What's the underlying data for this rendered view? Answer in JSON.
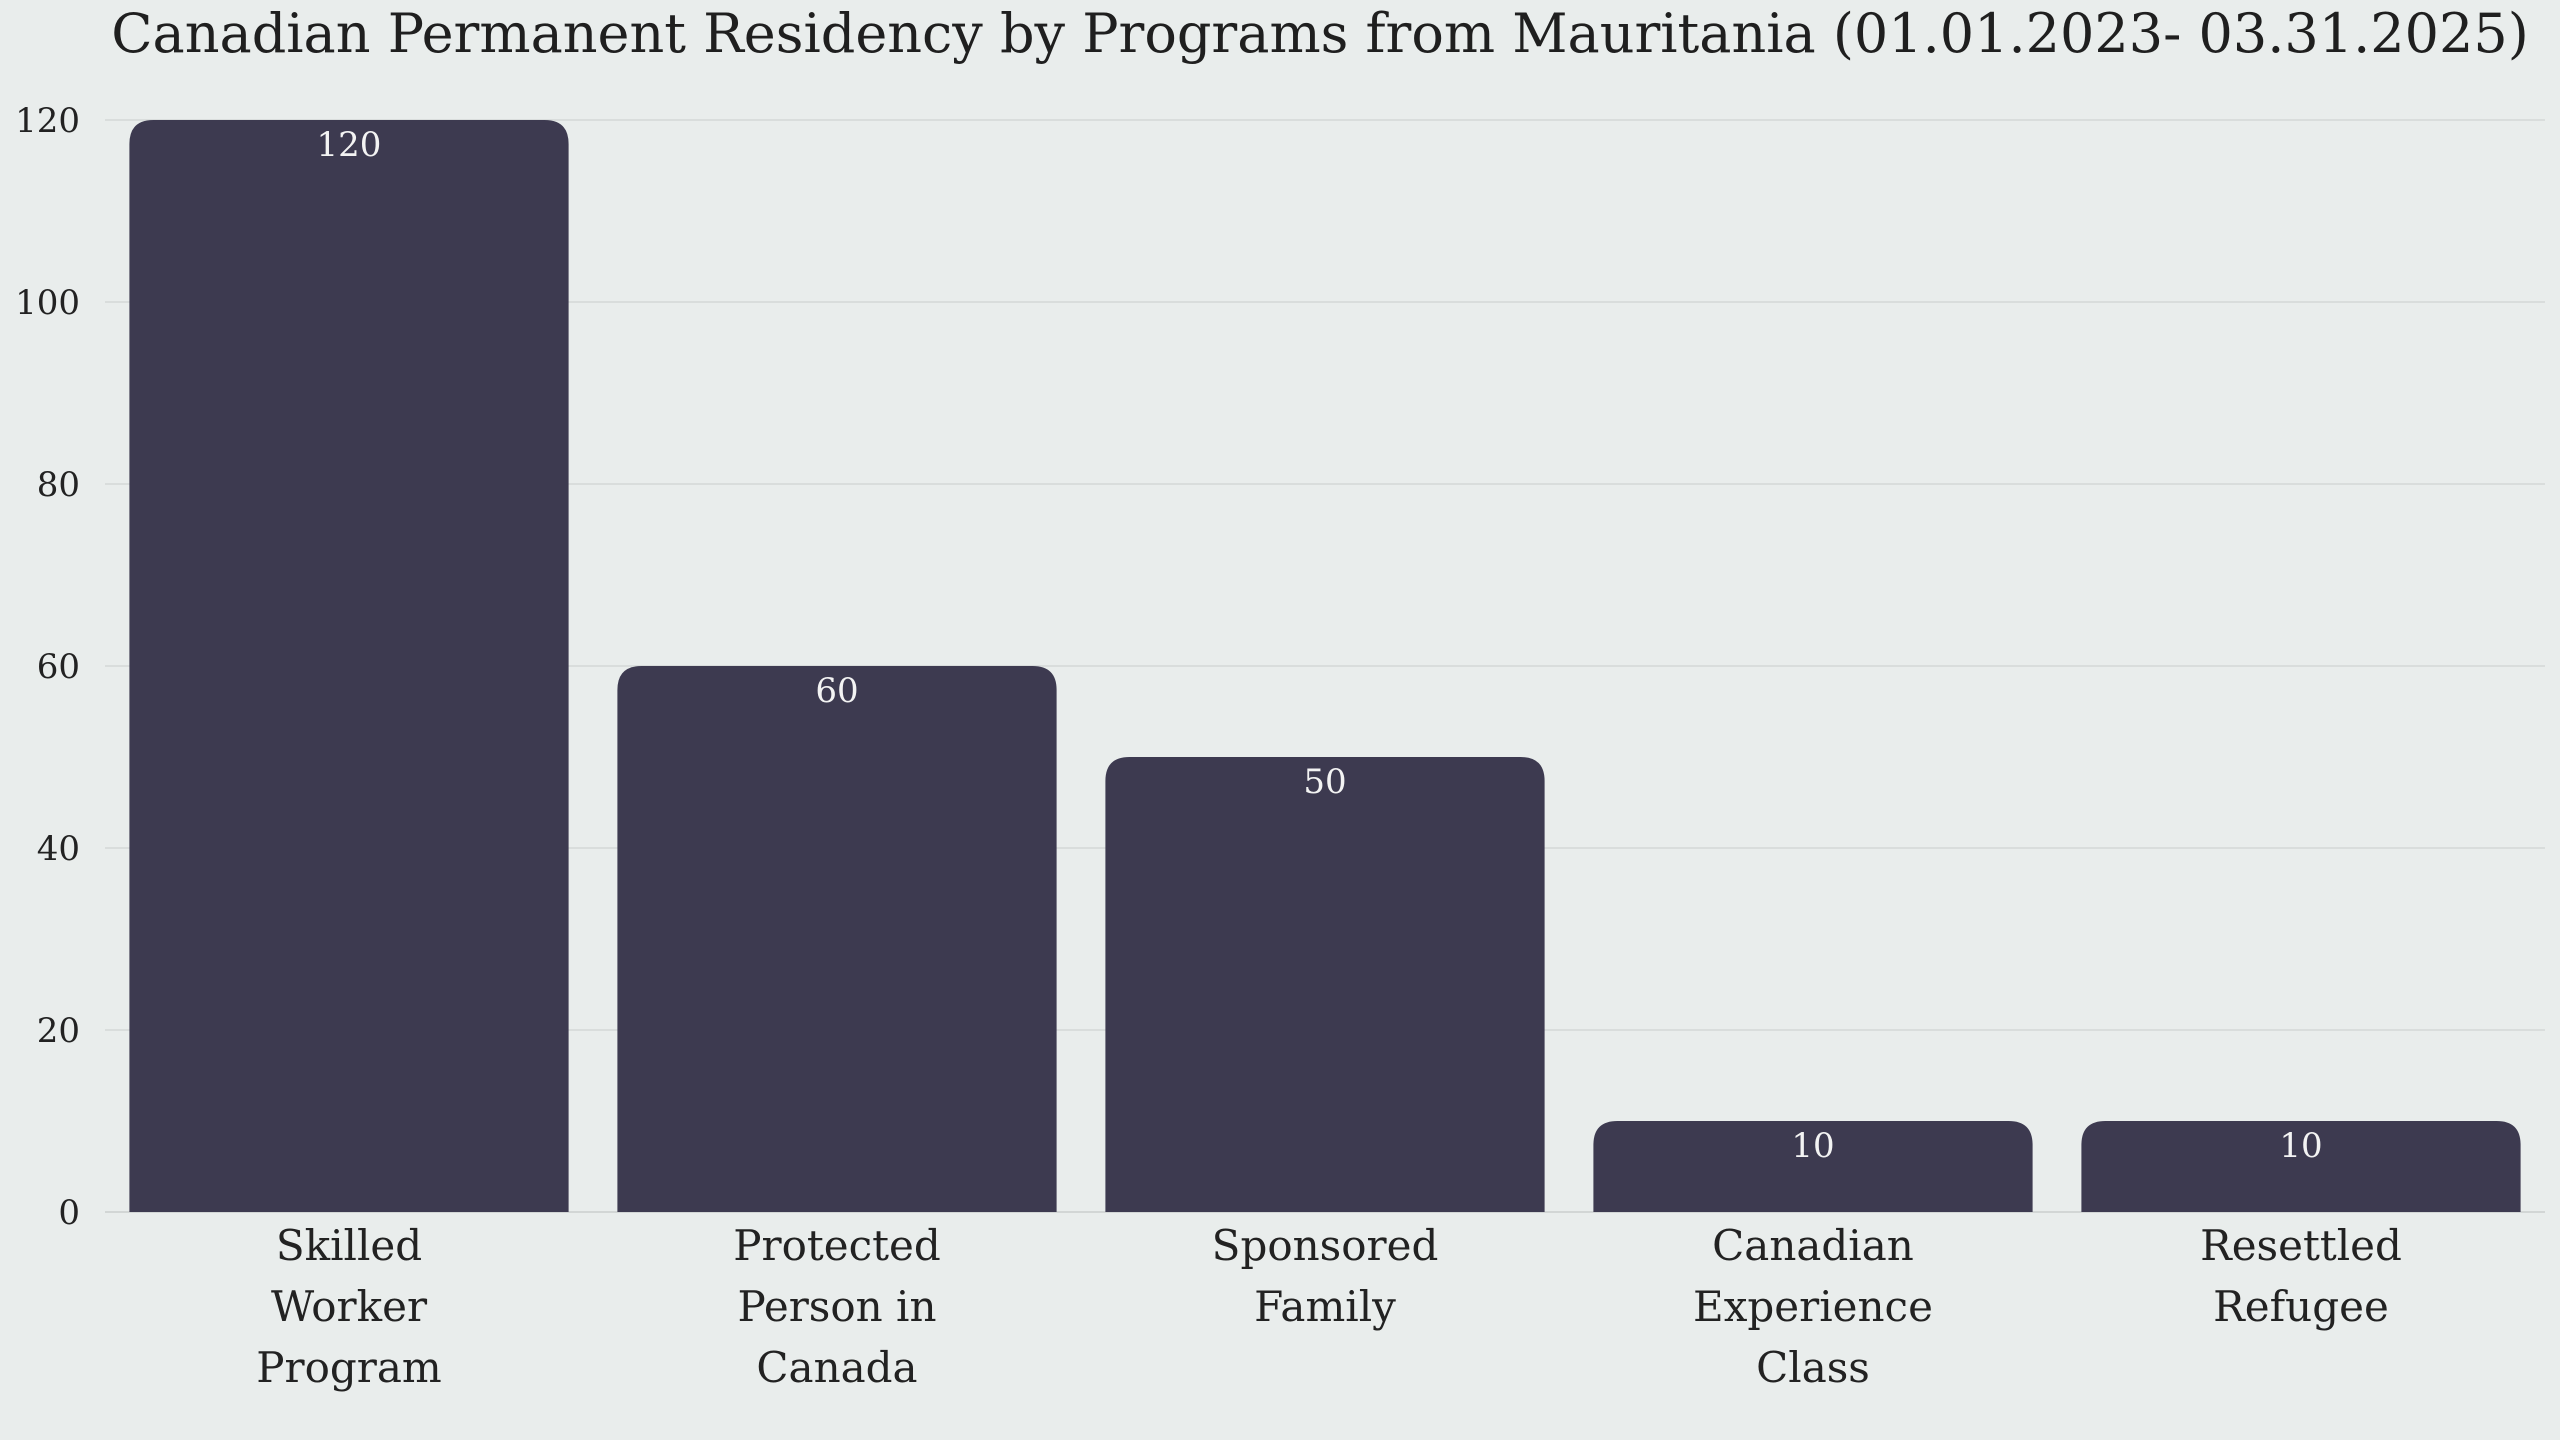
{
  "chart_data": {
    "type": "bar",
    "title": "Canadian Permanent Residency by Programs from Mauritania (01.01.2023- 03.31.2025)",
    "categories": [
      [
        "Skilled",
        "Worker",
        "Program"
      ],
      [
        "Protected",
        "Person in",
        "Canada"
      ],
      [
        "Sponsored",
        "Family"
      ],
      [
        "Canadian",
        "Experience",
        "Class"
      ],
      [
        "Resettled",
        "Refugee"
      ]
    ],
    "values": [
      120,
      60,
      50,
      10,
      10
    ],
    "data_labels": [
      "120",
      "60",
      "50",
      "10",
      "10"
    ],
    "xlabel": "",
    "ylabel": "",
    "ylim": [
      0,
      120
    ],
    "yticks": [
      "0",
      "20",
      "40",
      "60",
      "80",
      "100",
      "120"
    ],
    "grid": "horizontal",
    "legend": "none",
    "bar_color": "#3d3a50",
    "background_color": "#e9edec"
  }
}
